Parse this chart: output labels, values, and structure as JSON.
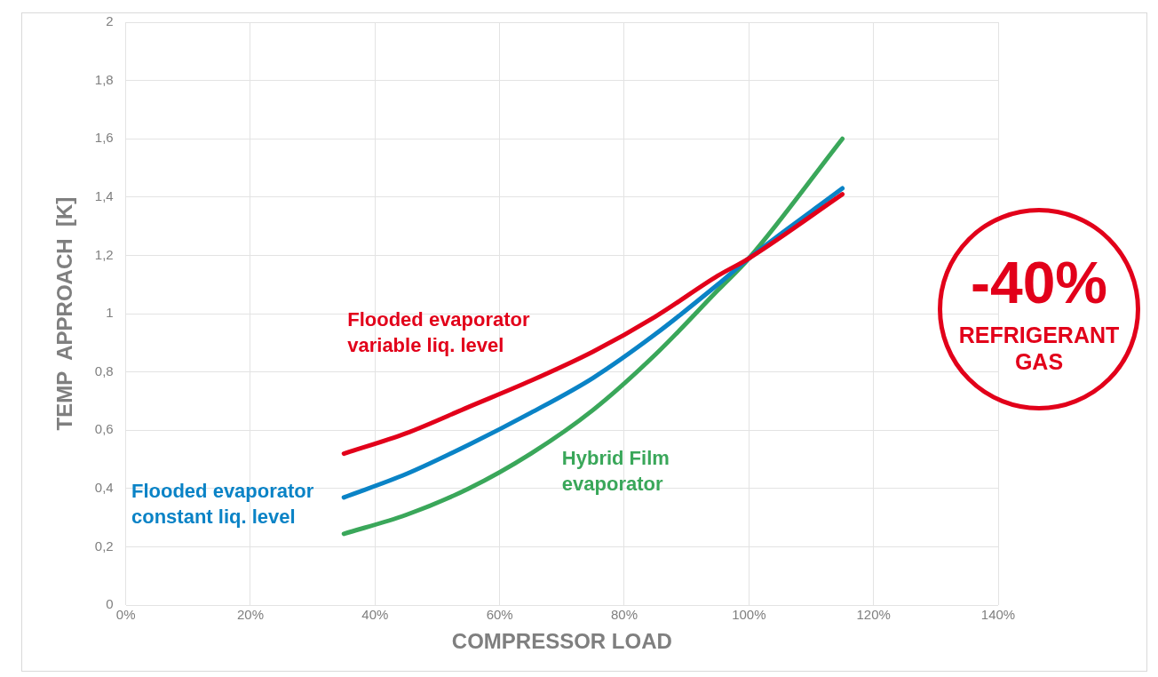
{
  "chart_data": {
    "type": "line",
    "xlabel": "COMPRESSOR LOAD",
    "ylabel": "TEMP  APPROACH  [K]",
    "x": [
      35,
      45,
      55,
      65,
      75,
      85,
      95,
      100,
      115
    ],
    "series": [
      {
        "name": "Flooded evaporator variable liq. level",
        "color": "#e2001a",
        "values": [
          0.52,
          0.59,
          0.68,
          0.77,
          0.87,
          0.99,
          1.13,
          1.19,
          1.41
        ]
      },
      {
        "name": "Flooded evaporator constant liq. level",
        "color": "#0a83c6",
        "values": [
          0.37,
          0.45,
          0.55,
          0.66,
          0.78,
          0.93,
          1.1,
          1.19,
          1.43
        ]
      },
      {
        "name": "Hybrid Film evaporator",
        "color": "#3aa75a",
        "values": [
          0.245,
          0.31,
          0.4,
          0.52,
          0.67,
          0.86,
          1.08,
          1.19,
          1.6
        ]
      }
    ],
    "xlim": [
      0,
      140
    ],
    "xticks": [
      {
        "value": 0,
        "label": "0%"
      },
      {
        "value": 20,
        "label": "20%"
      },
      {
        "value": 40,
        "label": "40%"
      },
      {
        "value": 60,
        "label": "60%"
      },
      {
        "value": 80,
        "label": "80%"
      },
      {
        "value": 100,
        "label": "100%"
      },
      {
        "value": 120,
        "label": "120%"
      },
      {
        "value": 140,
        "label": "140%"
      }
    ],
    "ylim": [
      0,
      2
    ],
    "yticks": [
      0,
      {
        "value": 0.2,
        "label": "0,2"
      },
      {
        "value": 0.4,
        "label": "0,4"
      },
      {
        "value": 0.6,
        "label": "0,6"
      },
      {
        "value": 0.8,
        "label": "0,8"
      },
      1,
      {
        "value": 1.2,
        "label": "1,2"
      },
      {
        "value": 1.4,
        "label": "1,4"
      },
      {
        "value": 1.6,
        "label": "1,6"
      },
      {
        "value": 1.8,
        "label": "1,8"
      },
      2
    ],
    "annotations": [
      "-40%",
      "REFRIGERANT GAS"
    ],
    "grid": true,
    "legend": false,
    "marker": "none",
    "line_style": "solid"
  }
}
